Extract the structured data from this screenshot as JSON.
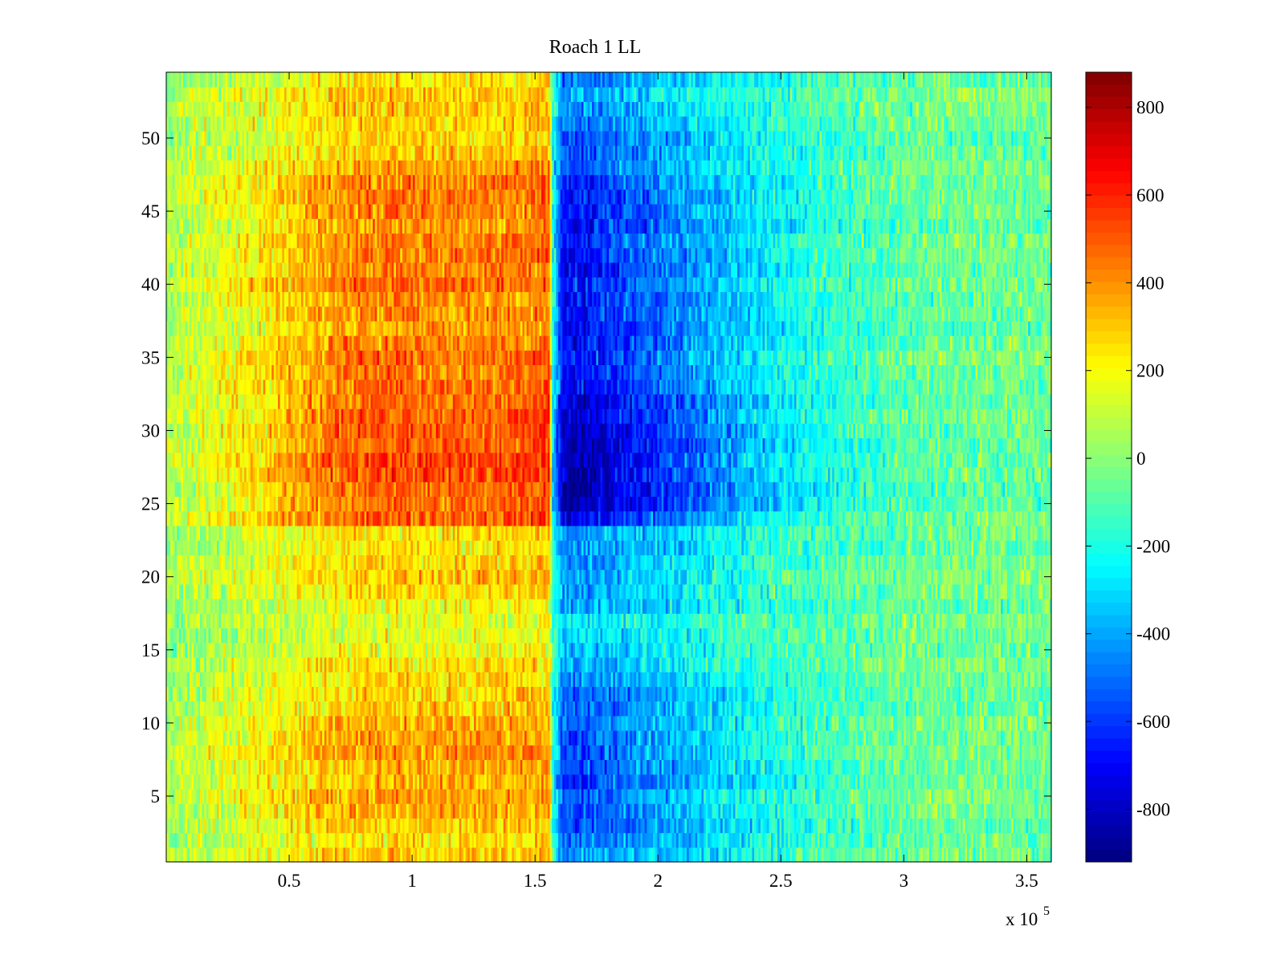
{
  "chart_data": {
    "type": "heatmap",
    "title": "Roach 1 LL",
    "xlabel": "",
    "ylabel": "",
    "colormap": "jet",
    "x_range": [
      0,
      360000
    ],
    "y_range": [
      0.5,
      54.5
    ],
    "x_ticks": [
      50000,
      100000,
      150000,
      200000,
      250000,
      300000,
      350000
    ],
    "x_tick_labels": [
      "0.5",
      "1",
      "1.5",
      "2",
      "2.5",
      "3",
      "3.5"
    ],
    "x_exponent_label": "x 10",
    "x_exponent": "5",
    "y_ticks": [
      5,
      10,
      15,
      20,
      25,
      30,
      35,
      40,
      45,
      50
    ],
    "y_tick_labels": [
      "5",
      "10",
      "15",
      "20",
      "25",
      "30",
      "35",
      "40",
      "45",
      "50"
    ],
    "colorbar_range": [
      -920,
      880
    ],
    "colorbar_ticks": [
      800,
      600,
      400,
      200,
      0,
      -200,
      -400,
      -600,
      -800
    ],
    "colorbar_tick_labels": [
      "800",
      "600",
      "400",
      "200",
      "0",
      "-200",
      "-400",
      "-600",
      "-800"
    ],
    "num_rows": 54,
    "row_strength": [
      0.75,
      0.75,
      0.85,
      0.9,
      0.9,
      0.95,
      0.9,
      0.95,
      0.9,
      0.85,
      0.8,
      0.8,
      0.7,
      0.6,
      0.5,
      0.45,
      0.45,
      0.6,
      0.65,
      0.7,
      0.7,
      0.7,
      0.7,
      1.2,
      1.25,
      1.3,
      1.35,
      1.35,
      1.3,
      1.3,
      1.25,
      1.2,
      1.15,
      1.1,
      1.1,
      1.1,
      1.05,
      1.05,
      1.05,
      1.1,
      1.1,
      1.1,
      1.05,
      1.05,
      1.05,
      1.1,
      1.05,
      0.9,
      0.85,
      0.8,
      0.75,
      0.75,
      0.7,
      0.7
    ],
    "profile": {
      "x": [
        0,
        20000,
        45000,
        70000,
        90000,
        110000,
        135000,
        152000,
        156000,
        157000,
        161000,
        165000,
        180000,
        200000,
        220000,
        250000,
        280000,
        310000,
        340000,
        360000
      ],
      "value": [
        60,
        140,
        240,
        370,
        400,
        380,
        390,
        420,
        430,
        -180,
        -600,
        -650,
        -560,
        -470,
        -360,
        -220,
        -120,
        -60,
        -50,
        -60
      ]
    },
    "noise_amplitude": 140,
    "column_count": 420,
    "notes_orientation": "row 1 at bottom, row 54 at top"
  }
}
